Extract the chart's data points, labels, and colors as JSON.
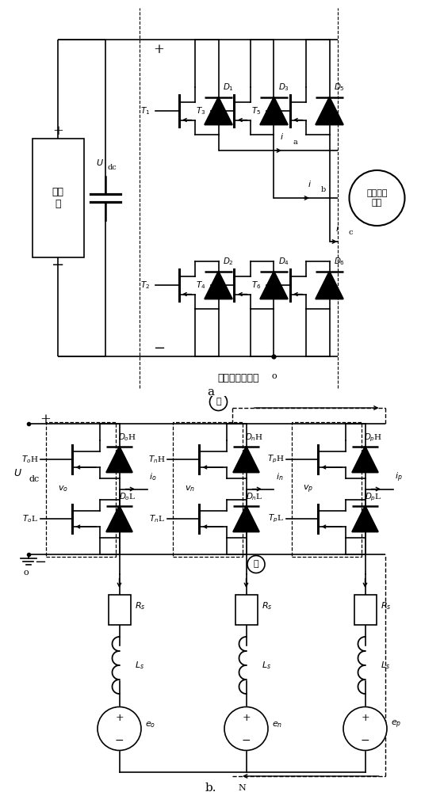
{
  "figsize": [
    5.31,
    10.0
  ],
  "dpi": 100,
  "title_a": "a",
  "title_b": "b.",
  "label_inverter": "三相桥式逆变器",
  "label_motor": "无刷直流\n电机",
  "label_source": "电压\n源"
}
